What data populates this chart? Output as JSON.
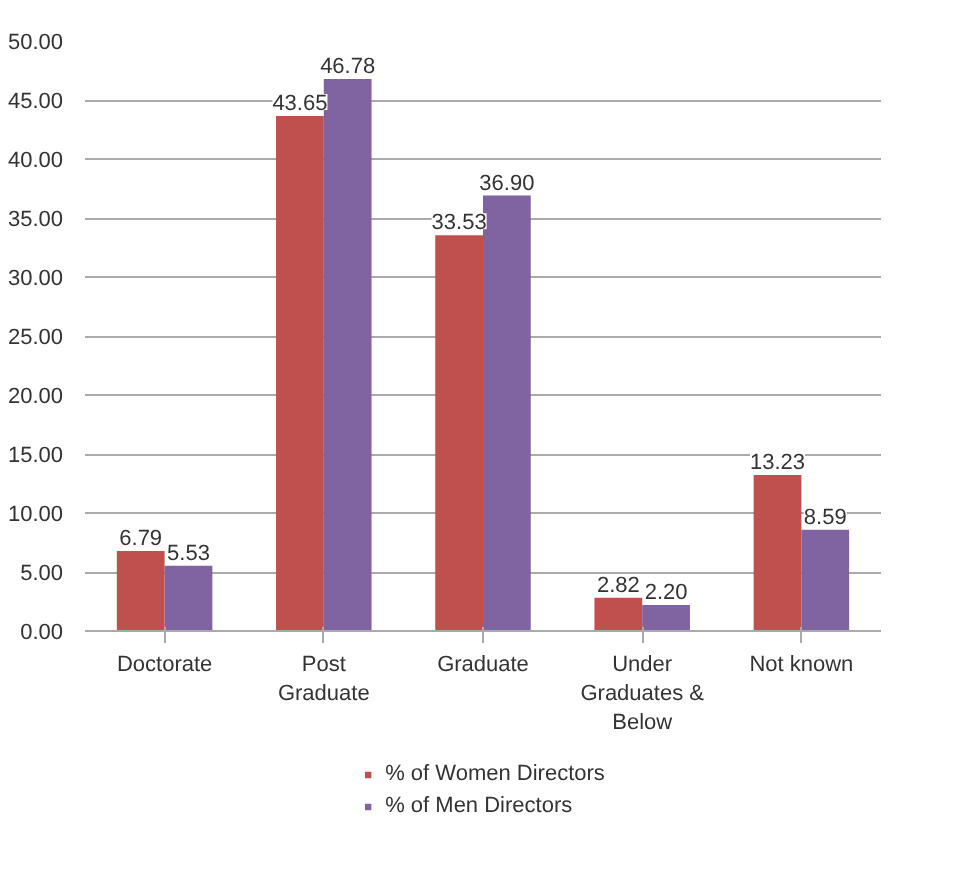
{
  "chart_data": {
    "type": "bar",
    "categories": [
      "Doctorate",
      "Post Graduate",
      "Graduate",
      "Under Graduates & Below",
      "Not known"
    ],
    "series": [
      {
        "name": "% of Women Directors",
        "color": "#c0504d",
        "values": [
          6.79,
          43.65,
          33.53,
          2.82,
          13.23
        ],
        "value_labels": [
          "6.79",
          "43.65",
          "33.53",
          "2.82",
          "13.23"
        ]
      },
      {
        "name": "% of Men Directors",
        "color": "#8064a2",
        "values": [
          5.53,
          46.78,
          36.9,
          2.2,
          8.59
        ],
        "value_labels": [
          "5.53",
          "46.78",
          "36.90",
          "2.20",
          "8.59"
        ]
      }
    ],
    "ylim": [
      0,
      50
    ],
    "yticks": [
      {
        "value": 0,
        "label": "0.00"
      },
      {
        "value": 5,
        "label": "5.00"
      },
      {
        "value": 10,
        "label": "10.00"
      },
      {
        "value": 15,
        "label": "15.00"
      },
      {
        "value": 20,
        "label": "20.00"
      },
      {
        "value": 25,
        "label": "25.00"
      },
      {
        "value": 30,
        "label": "30.00"
      },
      {
        "value": 35,
        "label": "35.00"
      },
      {
        "value": 40,
        "label": "40.00"
      },
      {
        "value": 45,
        "label": "45.00"
      },
      {
        "value": 50,
        "label": "50.00"
      }
    ],
    "grid": "y",
    "legend": "bottom"
  }
}
